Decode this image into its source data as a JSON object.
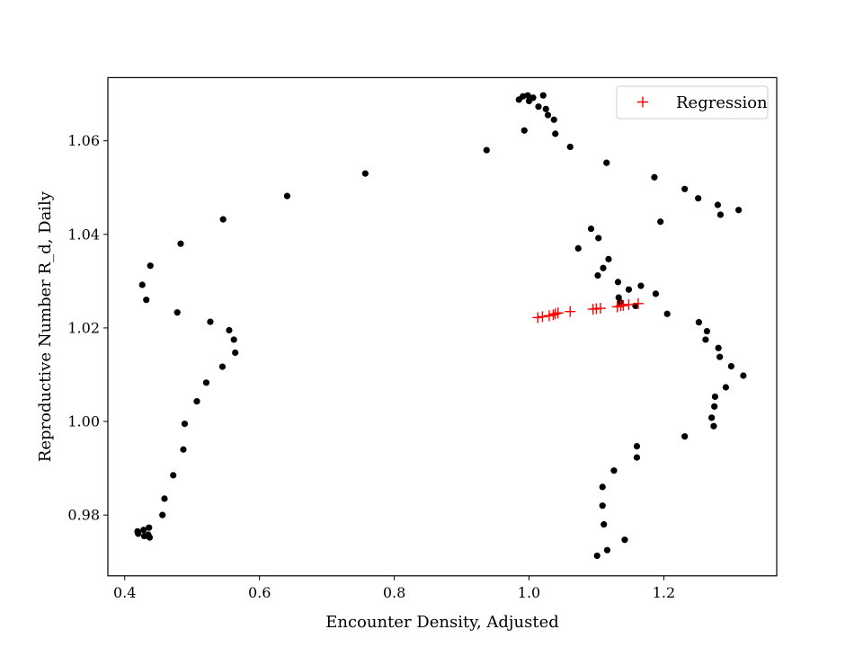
{
  "chart_data": {
    "type": "scatter",
    "title": "",
    "xlabel": "Encounter Density, Adjusted",
    "ylabel": "Reproductive Number R_d, Daily",
    "xlim": [
      0.375,
      1.3675
    ],
    "ylim": [
      0.967,
      1.0735
    ],
    "xticks": [
      0.4,
      0.6,
      0.8,
      1.0,
      1.2
    ],
    "xtick_labels": [
      "0.4",
      "0.6",
      "0.8",
      "1.0",
      "1.2"
    ],
    "yticks": [
      0.98,
      1.0,
      1.02,
      1.04,
      1.06
    ],
    "ytick_labels": [
      "0.98",
      "1.00",
      "1.02",
      "1.04",
      "1.06"
    ],
    "grid": false,
    "legend_position": "top-right",
    "series": [
      {
        "marker": "dot",
        "color": "#000000",
        "points": [
          [
            0.419,
            0.9765
          ],
          [
            0.42,
            0.976
          ],
          [
            0.428,
            0.9768
          ],
          [
            0.429,
            0.9755
          ],
          [
            0.435,
            0.9758
          ],
          [
            0.437,
            0.9752
          ],
          [
            0.436,
            0.9773
          ],
          [
            0.456,
            0.98
          ],
          [
            0.459,
            0.9835
          ],
          [
            0.472,
            0.9885
          ],
          [
            0.487,
            0.994
          ],
          [
            0.489,
            0.9995
          ],
          [
            0.507,
            1.0043
          ],
          [
            0.521,
            1.0083
          ],
          [
            0.545,
            1.0117
          ],
          [
            0.564,
            1.0147
          ],
          [
            0.562,
            1.0175
          ],
          [
            0.555,
            1.0195
          ],
          [
            0.527,
            1.0213
          ],
          [
            0.478,
            1.0233
          ],
          [
            0.432,
            1.026
          ],
          [
            0.426,
            1.0292
          ],
          [
            0.438,
            1.0333
          ],
          [
            0.483,
            1.038
          ],
          [
            0.546,
            1.0432
          ],
          [
            0.641,
            1.0482
          ],
          [
            0.757,
            1.053
          ],
          [
            0.937,
            1.058
          ],
          [
            0.993,
            1.0622
          ],
          [
            0.985,
            1.0688
          ],
          [
            0.991,
            1.0695
          ],
          [
            0.998,
            1.0697
          ],
          [
            1.0,
            1.0685
          ],
          [
            1.006,
            1.0692
          ],
          [
            1.014,
            1.0673
          ],
          [
            1.021,
            1.0697
          ],
          [
            1.025,
            1.0668
          ],
          [
            1.028,
            1.0655
          ],
          [
            1.037,
            1.0645
          ],
          [
            1.039,
            1.0615
          ],
          [
            1.061,
            1.0587
          ],
          [
            1.115,
            1.0553
          ],
          [
            1.186,
            1.0522
          ],
          [
            1.231,
            1.0497
          ],
          [
            1.251,
            1.0477
          ],
          [
            1.28,
            1.0463
          ],
          [
            1.284,
            1.0442
          ],
          [
            1.311,
            1.0452
          ],
          [
            1.195,
            1.0427
          ],
          [
            1.092,
            1.0412
          ],
          [
            1.103,
            1.0392
          ],
          [
            1.073,
            1.037
          ],
          [
            1.118,
            1.0347
          ],
          [
            1.11,
            1.0328
          ],
          [
            1.102,
            1.0312
          ],
          [
            1.132,
            1.0298
          ],
          [
            1.166,
            1.029
          ],
          [
            1.148,
            1.0282
          ],
          [
            1.188,
            1.0273
          ],
          [
            1.133,
            1.0265
          ],
          [
            1.135,
            1.0255
          ],
          [
            1.158,
            1.0247
          ],
          [
            1.205,
            1.023
          ],
          [
            1.252,
            1.0212
          ],
          [
            1.264,
            1.0193
          ],
          [
            1.262,
            1.0175
          ],
          [
            1.281,
            1.0157
          ],
          [
            1.283,
            1.0138
          ],
          [
            1.3,
            1.0118
          ],
          [
            1.318,
            1.0098
          ],
          [
            1.292,
            1.0073
          ],
          [
            1.276,
            1.0053
          ],
          [
            1.275,
            1.0032
          ],
          [
            1.271,
            1.0008
          ],
          [
            1.274,
            0.999
          ],
          [
            1.231,
            0.9968
          ],
          [
            1.16,
            0.9947
          ],
          [
            1.16,
            0.9923
          ],
          [
            1.126,
            0.9895
          ],
          [
            1.109,
            0.986
          ],
          [
            1.109,
            0.982
          ],
          [
            1.111,
            0.978
          ],
          [
            1.142,
            0.9747
          ],
          [
            1.116,
            0.9725
          ],
          [
            1.101,
            0.9713
          ]
        ]
      },
      {
        "name": "Regression",
        "marker": "plus",
        "color": "#ff0000",
        "points": [
          [
            1.013,
            1.0222
          ],
          [
            1.02,
            1.0224
          ],
          [
            1.03,
            1.0226
          ],
          [
            1.036,
            1.0228
          ],
          [
            1.039,
            1.023
          ],
          [
            1.043,
            1.0232
          ],
          [
            1.061,
            1.0235
          ],
          [
            1.095,
            1.024
          ],
          [
            1.1,
            1.0241
          ],
          [
            1.106,
            1.0242
          ],
          [
            1.131,
            1.0245
          ],
          [
            1.136,
            1.0247
          ],
          [
            1.14,
            1.0248
          ],
          [
            1.148,
            1.025
          ],
          [
            1.162,
            1.0252
          ]
        ]
      }
    ]
  }
}
